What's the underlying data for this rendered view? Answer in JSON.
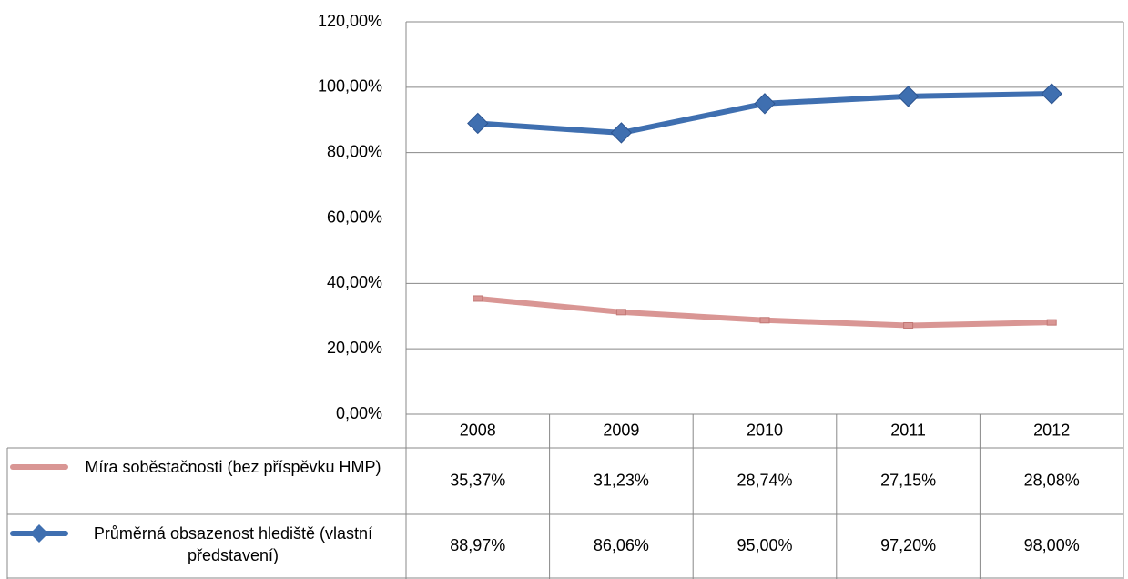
{
  "chart_data": {
    "type": "line",
    "categories": [
      "2008",
      "2009",
      "2010",
      "2011",
      "2012"
    ],
    "ylim": [
      0,
      120
    ],
    "yticks": [
      {
        "value": 0,
        "label": "0,00%"
      },
      {
        "value": 20,
        "label": "20,00%"
      },
      {
        "value": 40,
        "label": "40,00%"
      },
      {
        "value": 60,
        "label": "60,00%"
      },
      {
        "value": 80,
        "label": "80,00%"
      },
      {
        "value": 100,
        "label": "100,00%"
      },
      {
        "value": 120,
        "label": "120,00%"
      }
    ],
    "grid": true,
    "series": [
      {
        "name": "Míra soběstačnosti (bez příspěvku HMP)",
        "color": "#d99694",
        "marker": "square",
        "values": [
          35.37,
          31.23,
          28.74,
          27.15,
          28.08
        ],
        "value_labels": [
          "35,37%",
          "31,23%",
          "28,74%",
          "27,15%",
          "28,08%"
        ]
      },
      {
        "name": "Průměrná obsazenost hlediště (vlastní představení)",
        "color": "#3f6fb0",
        "marker": "diamond",
        "values": [
          88.97,
          86.06,
          95.0,
          97.2,
          98.0
        ],
        "value_labels": [
          "88,97%",
          "86,06%",
          "95,00%",
          "97,20%",
          "98,00%"
        ]
      }
    ]
  }
}
